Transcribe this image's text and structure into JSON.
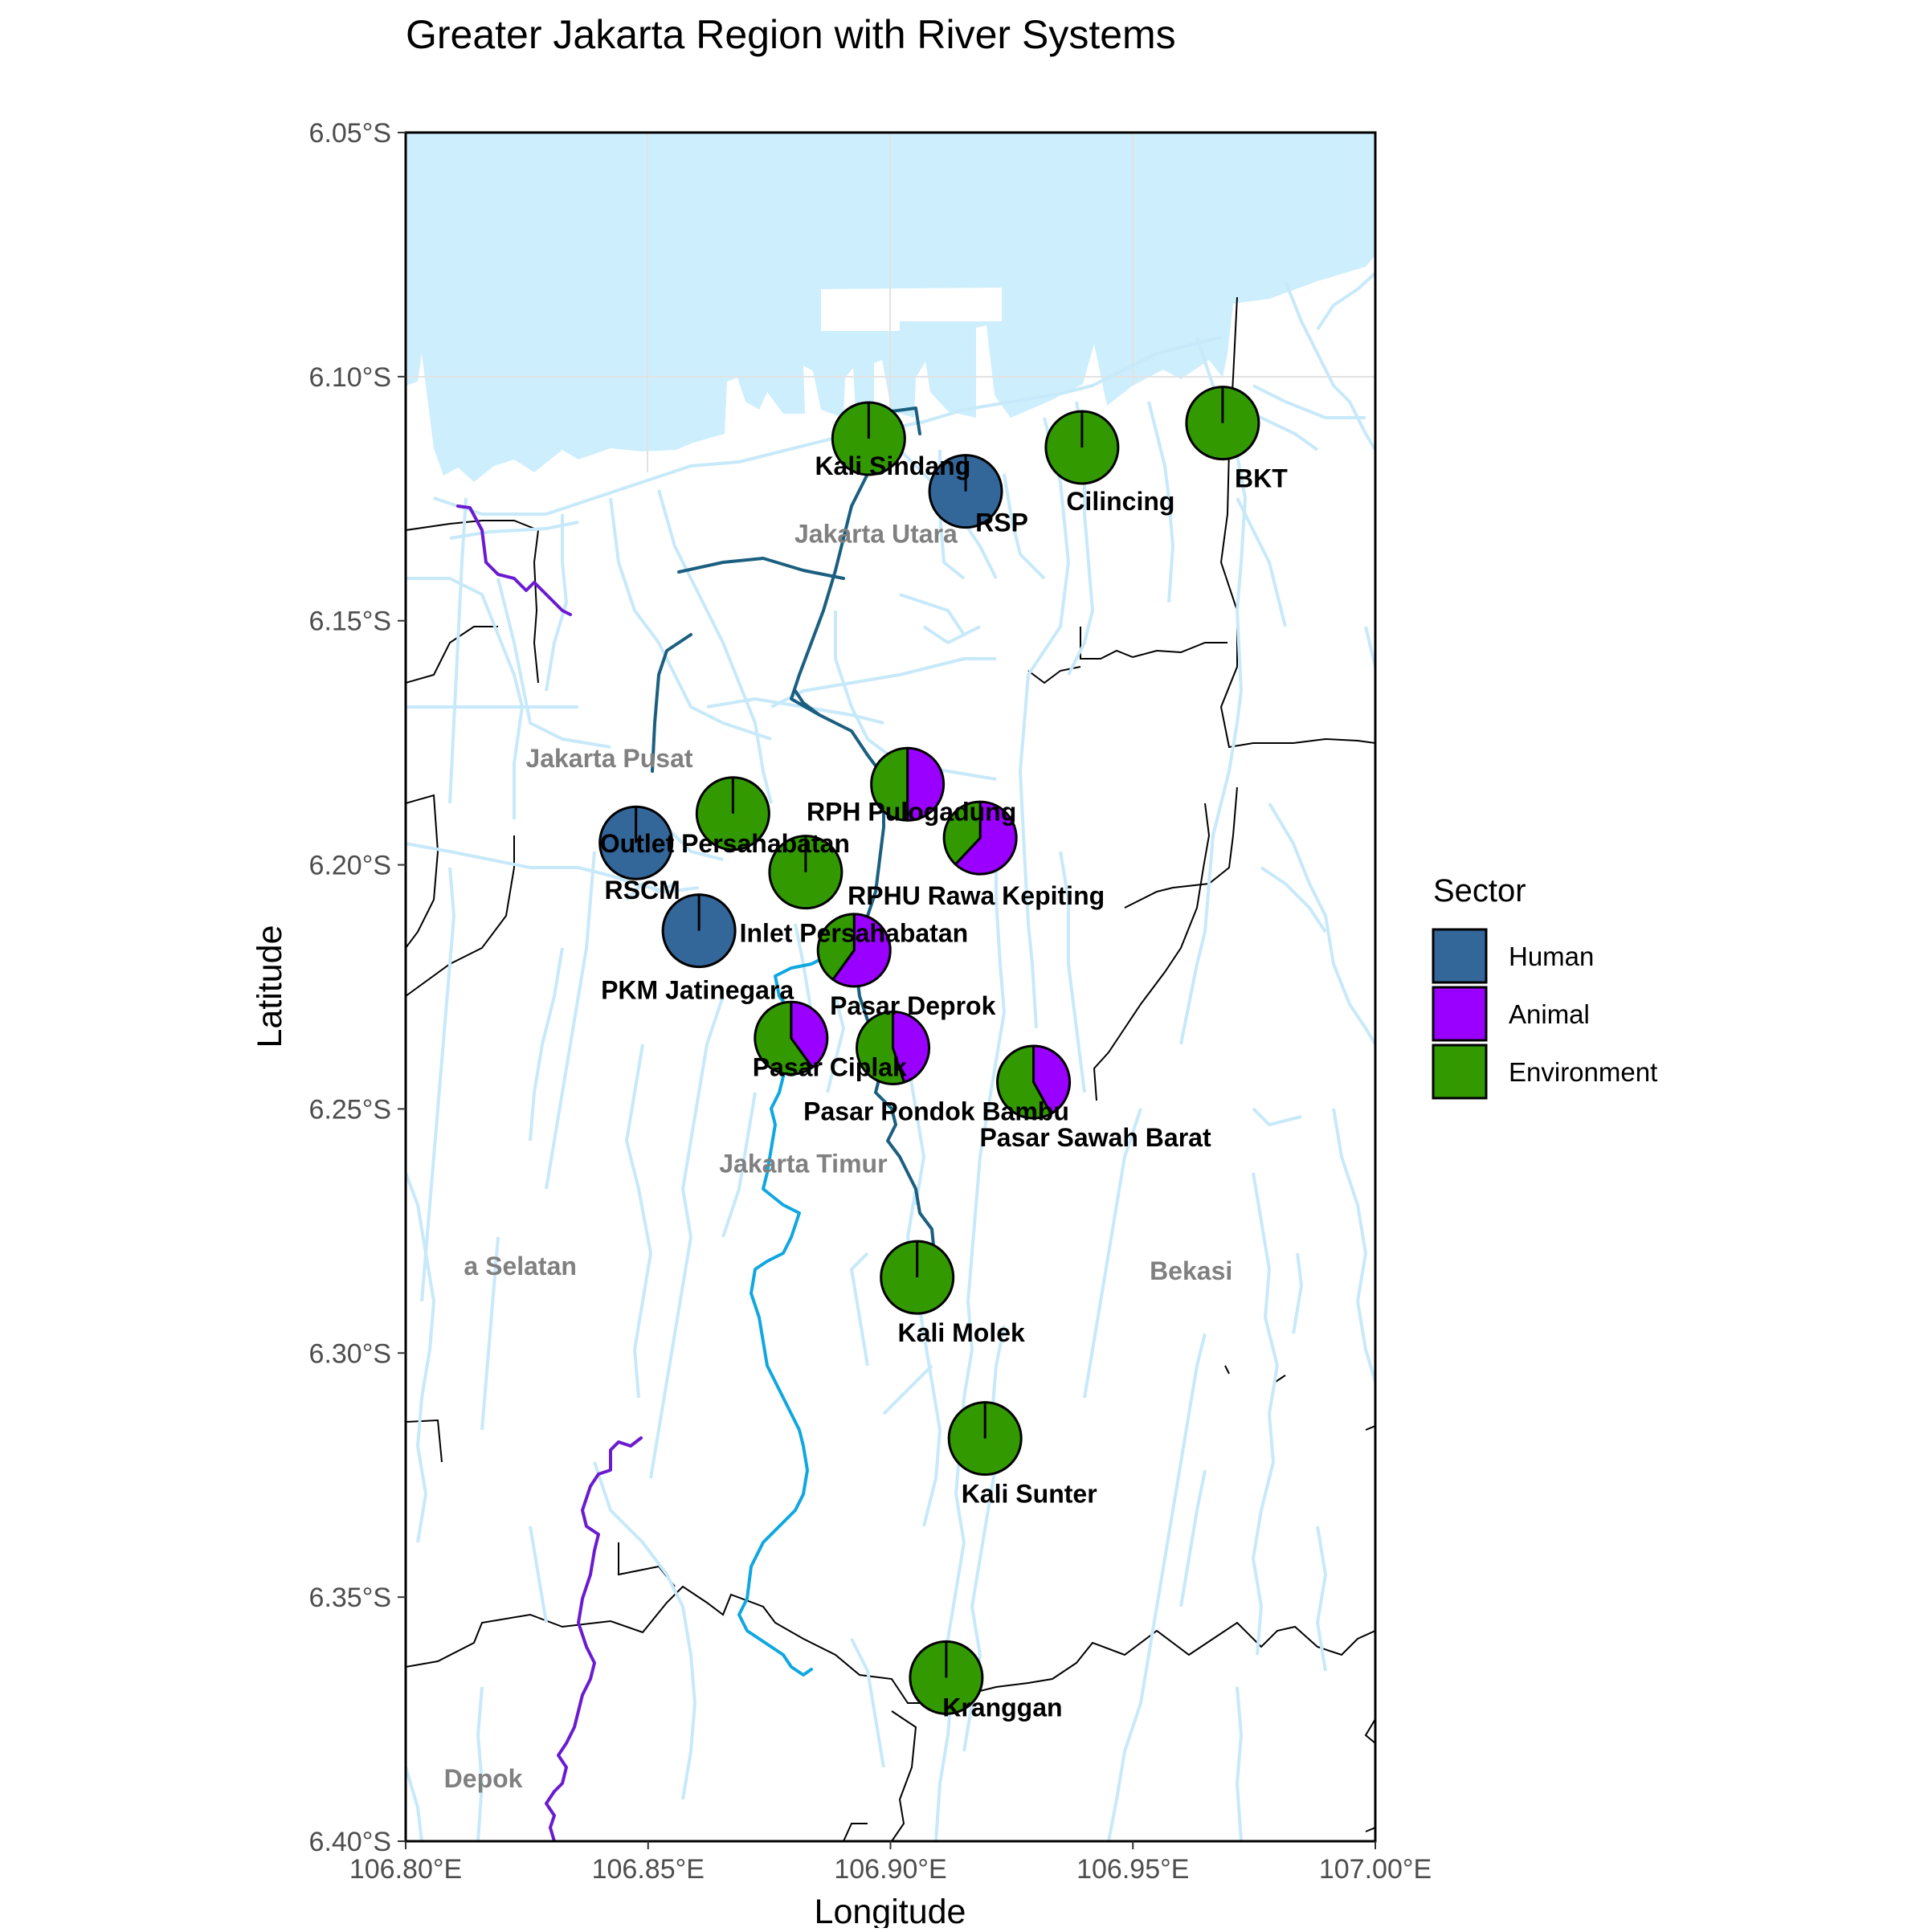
{
  "title": "Greater Jakarta Region with River Systems",
  "axes": {
    "xlabel": "Longitude",
    "ylabel": "Latitude",
    "xlim": [
      106.8,
      107.0
    ],
    "ylim": [
      -6.4,
      -6.05
    ],
    "xticks": [
      {
        "value": 106.8,
        "label": "106.80°E"
      },
      {
        "value": 106.85,
        "label": "106.85°E"
      },
      {
        "value": 106.9,
        "label": "106.90°E"
      },
      {
        "value": 106.95,
        "label": "106.95°E"
      },
      {
        "value": 107.0,
        "label": "107.00°E"
      }
    ],
    "yticks": [
      {
        "value": -6.05,
        "label": "6.05°S"
      },
      {
        "value": -6.1,
        "label": "6.10°S"
      },
      {
        "value": -6.15,
        "label": "6.15°S"
      },
      {
        "value": -6.2,
        "label": "6.20°S"
      },
      {
        "value": -6.25,
        "label": "6.25°S"
      },
      {
        "value": -6.3,
        "label": "6.30°S"
      },
      {
        "value": -6.35,
        "label": "6.35°S"
      },
      {
        "value": -6.4,
        "label": "6.40°S"
      }
    ]
  },
  "colors": {
    "sea": "#cdeefd",
    "river": "#c7e9f9",
    "admin_border": "#000000",
    "region_label": "#808080",
    "canal_dark": "#1b5f80",
    "river_blue": "#10a7e0",
    "river_purple": "#6a1bd0",
    "Human": "#336699",
    "Animal": "#9900ff",
    "Environment": "#339900"
  },
  "legend": {
    "title": "Sector",
    "items": [
      {
        "label": "Human",
        "color": "#336699"
      },
      {
        "label": "Animal",
        "color": "#9900ff"
      },
      {
        "label": "Environment",
        "color": "#339900"
      }
    ]
  },
  "region_labels": [
    {
      "label": "Jakarta Utara",
      "lon": 106.897,
      "lat": -6.134
    },
    {
      "label": "Jakarta Pusat",
      "lon": 106.842,
      "lat": -6.18
    },
    {
      "label": "Jakarta Timur",
      "lon": 106.882,
      "lat": -6.263
    },
    {
      "label": "a Selatan",
      "lon": 106.812,
      "lat": -6.284
    },
    {
      "label": "Bekasi",
      "lon": 106.962,
      "lat": -6.285
    },
    {
      "label": "Depok",
      "lon": 106.816,
      "lat": -6.389
    }
  ],
  "chart_data": {
    "type": "pie-map",
    "title": "Greater Jakarta Region with River Systems",
    "xlabel": "Longitude",
    "ylabel": "Latitude",
    "xlim": [
      106.8,
      107.0
    ],
    "ylim": [
      -6.4,
      -6.05
    ],
    "legend": "right",
    "sectors": [
      "Human",
      "Animal",
      "Environment"
    ],
    "sites": [
      {
        "name": "Kali Sindang",
        "lon": 106.8955,
        "lat": -6.1127,
        "Human": 0,
        "Animal": 0,
        "Environment": 1
      },
      {
        "name": "RSP",
        "lon": 106.9155,
        "lat": -6.1235,
        "Human": 1,
        "Animal": 0,
        "Environment": 0
      },
      {
        "name": "Cilincing",
        "lon": 106.9395,
        "lat": -6.1145,
        "Human": 0,
        "Animal": 0,
        "Environment": 1
      },
      {
        "name": "BKT",
        "lon": 106.9685,
        "lat": -6.1095,
        "Human": 0,
        "Animal": 0,
        "Environment": 1
      },
      {
        "name": "RPH Pulogadung",
        "lon": 106.9035,
        "lat": -6.1835,
        "Human": 0,
        "Animal": 0.5,
        "Environment": 0.5
      },
      {
        "name": "Outlet Persahabatan",
        "lon": 106.8675,
        "lat": -6.1895,
        "Human": 0,
        "Animal": 0,
        "Environment": 1
      },
      {
        "name": "RPHU Rawa Kepiting",
        "lon": 106.9185,
        "lat": -6.1945,
        "Human": 0,
        "Animal": 0.62,
        "Environment": 0.38
      },
      {
        "name": "RSCM",
        "lon": 106.8475,
        "lat": -6.1955,
        "Human": 1,
        "Animal": 0,
        "Environment": 0
      },
      {
        "name": "Inlet Persahabatan",
        "lon": 106.8825,
        "lat": -6.2015,
        "Human": 0,
        "Animal": 0,
        "Environment": 1
      },
      {
        "name": "PKM Jatinegara",
        "lon": 106.8605,
        "lat": -6.2135,
        "Human": 1,
        "Animal": 0,
        "Environment": 0
      },
      {
        "name": "Pasar Deprok",
        "lon": 106.8925,
        "lat": -6.2175,
        "Human": 0,
        "Animal": 0.6,
        "Environment": 0.4
      },
      {
        "name": "Pasar Ciplak",
        "lon": 106.8795,
        "lat": -6.2355,
        "Human": 0,
        "Animal": 0.4,
        "Environment": 0.6
      },
      {
        "name": "Pasar Pondok Bambu",
        "lon": 106.9005,
        "lat": -6.2375,
        "Human": 0,
        "Animal": 0.45,
        "Environment": 0.55
      },
      {
        "name": "Pasar Sawah Barat",
        "lon": 106.9295,
        "lat": -6.2445,
        "Human": 0,
        "Animal": 0.42,
        "Environment": 0.58
      },
      {
        "name": "Kali Molek",
        "lon": 106.9055,
        "lat": -6.2845,
        "Human": 0,
        "Animal": 0,
        "Environment": 1
      },
      {
        "name": "Kali Sunter",
        "lon": 106.9195,
        "lat": -6.3175,
        "Human": 0,
        "Animal": 0,
        "Environment": 1
      },
      {
        "name": "Kranggan",
        "lon": 106.9115,
        "lat": -6.3665,
        "Human": 0,
        "Animal": 0,
        "Environment": 1
      }
    ]
  }
}
